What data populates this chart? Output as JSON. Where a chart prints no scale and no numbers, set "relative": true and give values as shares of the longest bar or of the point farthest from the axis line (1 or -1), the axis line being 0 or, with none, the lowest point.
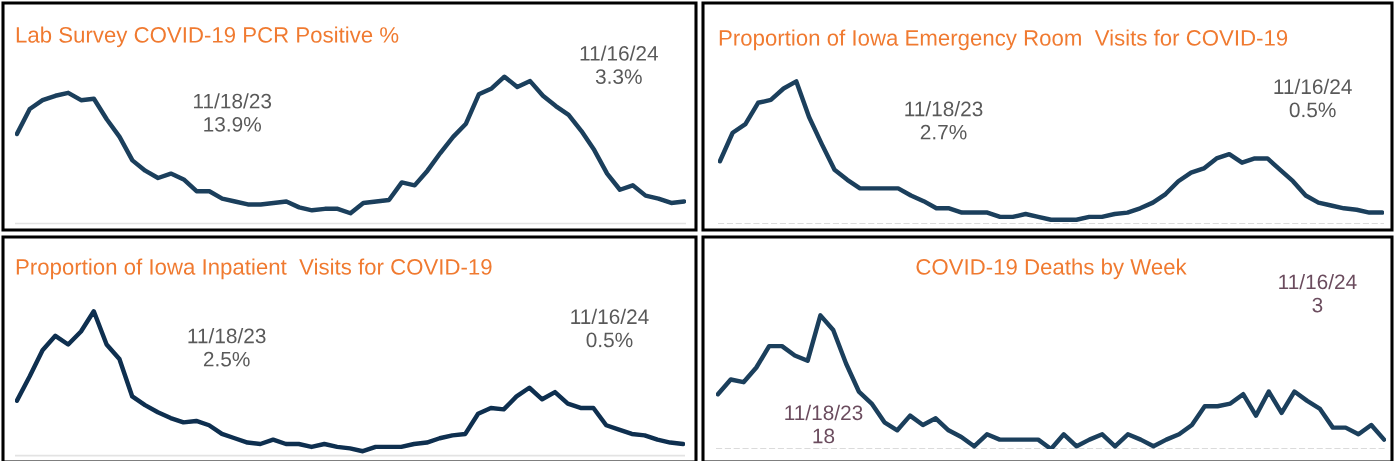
{
  "chart_data": [
    {
      "type": "line",
      "title": "Lab Survey COVID-19 PCR Positive %",
      "categories": [
        null,
        null,
        null,
        null,
        null,
        null,
        null,
        null,
        null,
        null,
        null,
        null,
        null,
        null,
        null,
        null,
        null,
        null,
        null,
        null,
        null,
        null,
        null,
        null,
        null,
        null,
        null,
        null,
        null,
        null,
        null,
        null,
        null,
        null,
        null,
        null,
        null,
        null,
        null,
        null,
        null,
        null,
        null,
        null,
        null,
        null,
        null,
        null,
        null,
        null,
        null,
        null,
        null
      ],
      "relative": true,
      "annotations": [
        "11/18/23\n13.9%",
        "11/16/24\n3.3%"
      ],
      "series": [
        {
          "color": "#1b3f5c",
          "values": [
            0.61,
            0.78,
            0.84,
            0.87,
            0.89,
            0.84,
            0.85,
            0.71,
            0.59,
            0.43,
            0.36,
            0.31,
            0.34,
            0.3,
            0.22,
            0.22,
            0.17,
            0.15,
            0.13,
            0.13,
            0.14,
            0.15,
            0.11,
            0.09,
            0.1,
            0.1,
            0.07,
            0.14,
            0.15,
            0.16,
            0.28,
            0.26,
            0.36,
            0.48,
            0.59,
            0.68,
            0.88,
            0.92,
            1,
            0.93,
            0.97,
            0.87,
            0.8,
            0.74,
            0.63,
            0.5,
            0.34,
            0.23,
            0.26,
            0.19,
            0.17,
            0.14,
            0.15
          ]
        }
      ]
    },
    {
      "type": "line",
      "title": "Proportion of Iowa Emergency Room  Visits for COVID-19",
      "categories": [
        null,
        null,
        null,
        null,
        null,
        null,
        null,
        null,
        null,
        null,
        null,
        null,
        null,
        null,
        null,
        null,
        null,
        null,
        null,
        null,
        null,
        null,
        null,
        null,
        null,
        null,
        null,
        null,
        null,
        null,
        null,
        null,
        null,
        null,
        null,
        null,
        null,
        null,
        null,
        null,
        null,
        null,
        null,
        null,
        null,
        null,
        null,
        null,
        null,
        null,
        null,
        null,
        null
      ],
      "relative": true,
      "annotations": [
        "11/18/23\n2.7%",
        "11/16/24\n0.5%"
      ],
      "series": [
        {
          "color": "#1b3f5c",
          "values": [
            0.44,
            0.64,
            0.7,
            0.85,
            0.87,
            0.95,
            1,
            0.75,
            0.56,
            0.38,
            0.31,
            0.25,
            0.25,
            0.25,
            0.25,
            0.2,
            0.16,
            0.11,
            0.11,
            0.08,
            0.08,
            0.08,
            0.05,
            0.05,
            0.07,
            0.05,
            0.03,
            0.03,
            0.03,
            0.05,
            0.05,
            0.07,
            0.08,
            0.11,
            0.15,
            0.21,
            0.3,
            0.36,
            0.39,
            0.46,
            0.49,
            0.43,
            0.46,
            0.46,
            0.38,
            0.3,
            0.2,
            0.15,
            0.13,
            0.11,
            0.1,
            0.08,
            0.08
          ]
        }
      ]
    },
    {
      "type": "line",
      "title": "Proportion of Iowa Inpatient  Visits for COVID-19",
      "categories": [
        null,
        null,
        null,
        null,
        null,
        null,
        null,
        null,
        null,
        null,
        null,
        null,
        null,
        null,
        null,
        null,
        null,
        null,
        null,
        null,
        null,
        null,
        null,
        null,
        null,
        null,
        null,
        null,
        null,
        null,
        null,
        null,
        null,
        null,
        null,
        null,
        null,
        null,
        null,
        null,
        null,
        null,
        null,
        null,
        null,
        null,
        null,
        null,
        null,
        null,
        null,
        null,
        null
      ],
      "relative": true,
      "annotations": [
        "11/18/23\n2.5%",
        "11/16/24\n0.5%"
      ],
      "series": [
        {
          "color": "#0e2f4f",
          "values": [
            0.38,
            0.55,
            0.73,
            0.83,
            0.77,
            0.86,
            1,
            0.77,
            0.67,
            0.41,
            0.35,
            0.3,
            0.26,
            0.23,
            0.24,
            0.21,
            0.15,
            0.12,
            0.09,
            0.08,
            0.11,
            0.08,
            0.08,
            0.06,
            0.08,
            0.06,
            0.05,
            0.03,
            0.06,
            0.06,
            0.06,
            0.08,
            0.09,
            0.12,
            0.14,
            0.15,
            0.29,
            0.33,
            0.32,
            0.41,
            0.47,
            0.39,
            0.44,
            0.36,
            0.33,
            0.33,
            0.21,
            0.18,
            0.15,
            0.14,
            0.11,
            0.09,
            0.08
          ]
        }
      ]
    },
    {
      "type": "line",
      "title": "COVID-19 Deaths by Week",
      "categories": [
        null,
        null,
        null,
        null,
        null,
        null,
        null,
        null,
        null,
        null,
        null,
        null,
        null,
        null,
        null,
        null,
        null,
        null,
        null,
        null,
        null,
        null,
        null,
        null,
        null,
        null,
        null,
        null,
        null,
        null,
        null,
        null,
        null,
        null,
        null,
        null,
        null,
        null,
        null,
        null,
        null,
        null,
        null,
        null,
        null,
        null,
        null,
        null,
        null,
        null,
        null,
        null,
        null
      ],
      "relative": true,
      "annotations": [
        "11/18/23\n18",
        "11/16/24\n3"
      ],
      "series": [
        {
          "color": "#1b3f5c",
          "values": [
            0.41,
            0.52,
            0.5,
            0.61,
            0.77,
            0.77,
            0.7,
            0.66,
            1,
            0.89,
            0.64,
            0.43,
            0.34,
            0.2,
            0.14,
            0.25,
            0.18,
            0.23,
            0.14,
            0.09,
            0.02,
            0.11,
            0.07,
            0.07,
            0.07,
            0.07,
            0,
            0.11,
            0.02,
            0.07,
            0.11,
            0.02,
            0.11,
            0.07,
            0.02,
            0.07,
            0.11,
            0.18,
            0.32,
            0.32,
            0.34,
            0.41,
            0.25,
            0.43,
            0.27,
            0.43,
            0.36,
            0.3,
            0.16,
            0.16,
            0.11,
            0.18,
            0.07
          ]
        }
      ]
    }
  ]
}
